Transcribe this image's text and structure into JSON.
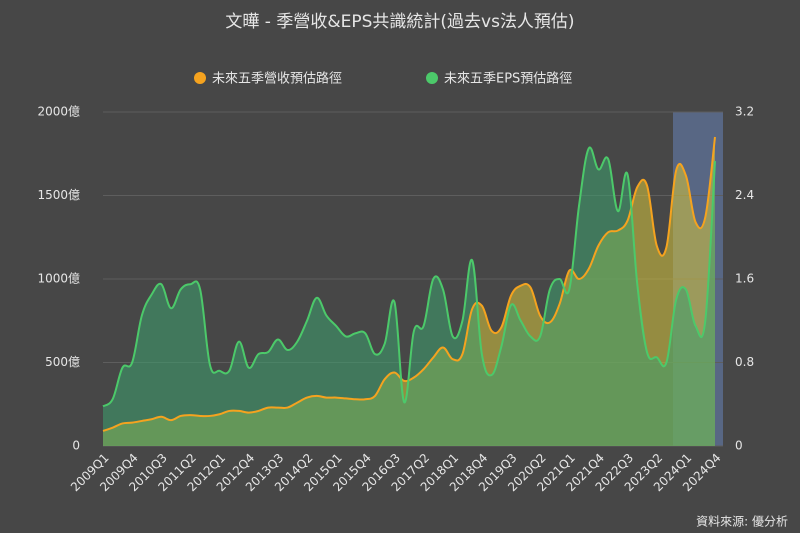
{
  "chart_data": {
    "type": "line",
    "title": "文曄 - 季營收&EPS共識統計(過去vs法人預估)",
    "source": "資料來源: 優分析",
    "categories": [
      "2009Q1",
      null,
      null,
      "2009Q4",
      null,
      null,
      "2010Q3",
      null,
      null,
      "2011Q2",
      null,
      null,
      "2012Q1",
      null,
      null,
      "2012Q4",
      null,
      null,
      "2013Q3",
      null,
      null,
      "2014Q2",
      null,
      null,
      "2015Q1",
      null,
      null,
      "2015Q4",
      null,
      null,
      "2016Q3",
      null,
      null,
      "2017Q2",
      null,
      null,
      "2018Q1",
      null,
      null,
      "2018Q4",
      null,
      null,
      "2019Q3",
      null,
      null,
      "2020Q2",
      null,
      null,
      "2021Q1",
      null,
      null,
      "2021Q4",
      null,
      null,
      "2022Q3",
      null,
      null,
      "2023Q2",
      null,
      null,
      "2024Q1",
      null,
      null,
      "2024Q4"
    ],
    "series": [
      {
        "name": "未來五季營收預估路徑",
        "color": "#f5a31f",
        "fill": "rgba(214,196,60,0.55)",
        "values": [
          90,
          110,
          135,
          140,
          150,
          160,
          175,
          155,
          180,
          185,
          180,
          180,
          190,
          210,
          210,
          200,
          210,
          230,
          230,
          230,
          260,
          290,
          300,
          290,
          290,
          285,
          280,
          280,
          300,
          400,
          440,
          390,
          410,
          460,
          530,
          590,
          520,
          550,
          820,
          840,
          690,
          710,
          900,
          960,
          950,
          780,
          740,
          850,
          1050,
          1000,
          1060,
          1200,
          1280,
          1290,
          1350,
          1550,
          1560,
          1200,
          1190,
          1650,
          1620,
          1340,
          1370,
          1850
        ]
      },
      {
        "name": "未來五季EPS預估路徑",
        "color": "#4cc96a",
        "fill": "rgba(60,160,110,0.55)",
        "axis": "y2",
        "values": [
          0.38,
          0.45,
          0.75,
          0.8,
          1.25,
          1.45,
          1.55,
          1.32,
          1.5,
          1.55,
          1.5,
          0.78,
          0.72,
          0.72,
          1.0,
          0.75,
          0.88,
          0.9,
          1.02,
          0.92,
          1.0,
          1.2,
          1.42,
          1.25,
          1.15,
          1.05,
          1.08,
          1.08,
          0.88,
          0.98,
          1.38,
          0.42,
          1.1,
          1.15,
          1.6,
          1.5,
          1.05,
          1.2,
          1.78,
          0.88,
          0.68,
          0.95,
          1.35,
          1.2,
          1.05,
          1.05,
          1.5,
          1.6,
          1.5,
          2.3,
          2.85,
          2.65,
          2.75,
          2.25,
          2.6,
          1.55,
          0.9,
          0.85,
          0.8,
          1.4,
          1.5,
          1.15,
          1.2,
          2.73
        ]
      }
    ],
    "ylim": [
      0,
      2000
    ],
    "yticks": [
      0,
      {
        "value": 500,
        "label": "500億"
      },
      {
        "value": 1000,
        "label": "1000億"
      },
      {
        "value": 1500,
        "label": "1500億"
      },
      {
        "value": 2000,
        "label": "2000億"
      }
    ],
    "y2lim": [
      0,
      3.2
    ],
    "y2ticks": [
      0,
      0.8,
      1.6,
      2.4,
      3.2
    ],
    "grid": true
  }
}
